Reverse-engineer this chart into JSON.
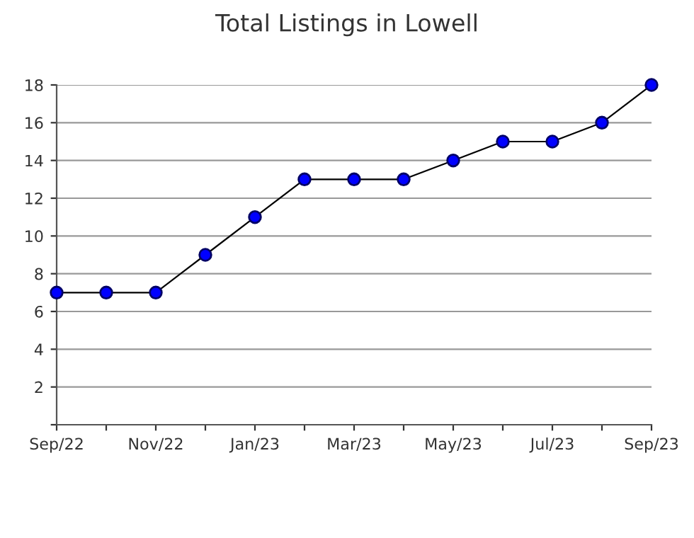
{
  "chart_data": {
    "type": "line",
    "title": "Total Listings in Lowell",
    "categories": [
      "Sep/22",
      null,
      "Nov/22",
      null,
      "Jan/23",
      null,
      "Mar/23",
      null,
      "May/23",
      null,
      "Jul/23",
      null,
      "Sep/23"
    ],
    "series": [
      {
        "color": "#0000ff",
        "values": [
          7,
          7,
          7,
          9,
          11,
          13,
          13,
          13,
          14,
          15,
          15,
          16,
          18
        ]
      }
    ],
    "ylim": [
      0,
      18
    ],
    "yticks": [
      {
        "value": 0,
        "label": null
      },
      2,
      4,
      6,
      8,
      10,
      12,
      14,
      16,
      18
    ],
    "grid": "y",
    "marker": "circle",
    "line_style": "solid"
  }
}
